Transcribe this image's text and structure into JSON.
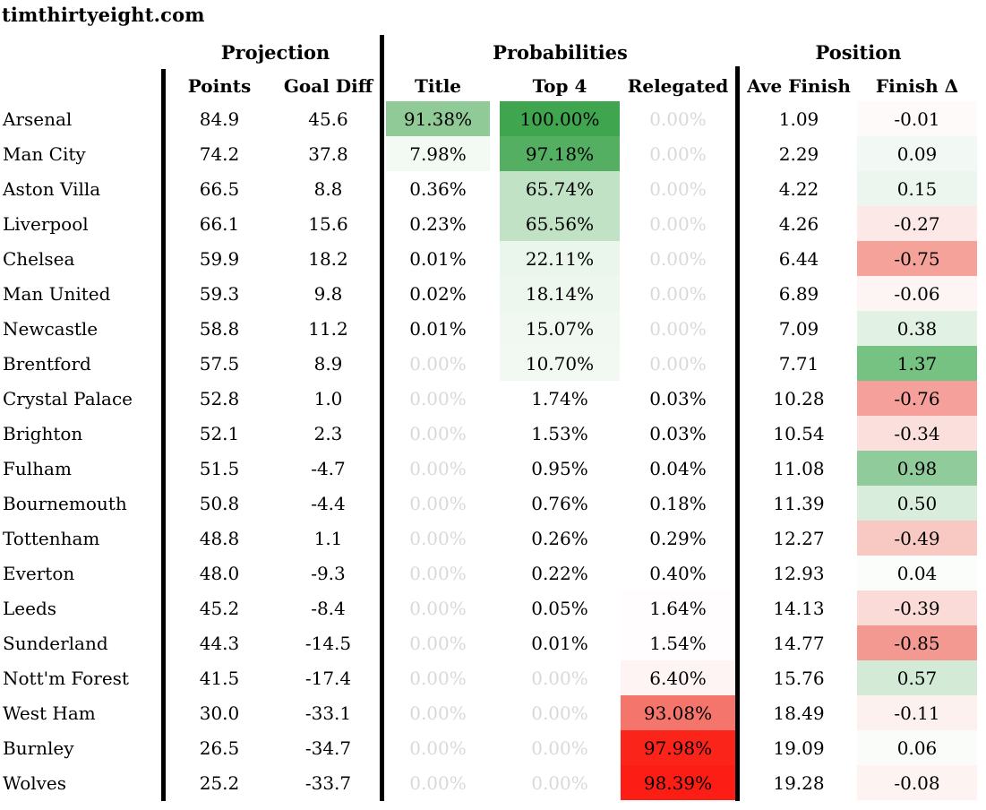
{
  "site_title": "timthirtyeight.com",
  "palette": {
    "green_max": "#3fa54e",
    "red_max": "#fc1e14",
    "zero_value_text": "#d9d9d9",
    "divider_bar": "#000000"
  },
  "chart_data": {
    "type": "table",
    "title": "timthirtyeight.com",
    "column_groups": [
      "Projection",
      "Probabilities",
      "Position"
    ],
    "columns": [
      "Points",
      "Goal Diff",
      "Title",
      "Top 4",
      "Relegated",
      "Ave Finish",
      "Finish Δ"
    ],
    "rows": [
      {
        "team": "Arsenal",
        "points": "84.9",
        "goal_diff": "45.6",
        "title": "91.38%",
        "top4": "100.00%",
        "relegated": "0.00%",
        "ave_finish": "1.09",
        "finish_delta": "-0.01",
        "colors": {
          "title": "#8fca97",
          "top4": "#3fa54e",
          "relegated": "#ffffff",
          "finish_delta": "#fefafa"
        }
      },
      {
        "team": "Man City",
        "points": "74.2",
        "goal_diff": "37.8",
        "title": "7.98%",
        "top4": "97.18%",
        "relegated": "0.00%",
        "ave_finish": "2.29",
        "finish_delta": "0.09",
        "colors": {
          "title": "#f3faf4",
          "top4": "#54af62",
          "relegated": "#ffffff",
          "finish_delta": "#f2f9f4"
        }
      },
      {
        "team": "Aston Villa",
        "points": "66.5",
        "goal_diff": "8.8",
        "title": "0.36%",
        "top4": "65.74%",
        "relegated": "0.00%",
        "ave_finish": "4.22",
        "finish_delta": "0.15",
        "colors": {
          "title": "#ffffff",
          "top4": "#c2e2c6",
          "relegated": "#ffffff",
          "finish_delta": "#ecf6ee"
        }
      },
      {
        "team": "Liverpool",
        "points": "66.1",
        "goal_diff": "15.6",
        "title": "0.23%",
        "top4": "65.56%",
        "relegated": "0.00%",
        "ave_finish": "4.26",
        "finish_delta": "-0.27",
        "colors": {
          "title": "#ffffff",
          "top4": "#c2e2c6",
          "relegated": "#ffffff",
          "finish_delta": "#fce8e6"
        }
      },
      {
        "team": "Chelsea",
        "points": "59.9",
        "goal_diff": "18.2",
        "title": "0.01%",
        "top4": "22.11%",
        "relegated": "0.00%",
        "ave_finish": "6.44",
        "finish_delta": "-0.75",
        "colors": {
          "title": "#ffffff",
          "top4": "#eaf6ec",
          "relegated": "#ffffff",
          "finish_delta": "#f5a29b"
        }
      },
      {
        "team": "Man United",
        "points": "59.3",
        "goal_diff": "9.8",
        "title": "0.02%",
        "top4": "18.14%",
        "relegated": "0.00%",
        "ave_finish": "6.89",
        "finish_delta": "-0.06",
        "colors": {
          "title": "#ffffff",
          "top4": "#edf7ee",
          "relegated": "#ffffff",
          "finish_delta": "#fdf5f4"
        }
      },
      {
        "team": "Newcastle",
        "points": "58.8",
        "goal_diff": "11.2",
        "title": "0.01%",
        "top4": "15.07%",
        "relegated": "0.00%",
        "ave_finish": "7.09",
        "finish_delta": "0.38",
        "colors": {
          "title": "#ffffff",
          "top4": "#f0f8f1",
          "relegated": "#ffffff",
          "finish_delta": "#e1f1e4"
        }
      },
      {
        "team": "Brentford",
        "points": "57.5",
        "goal_diff": "8.9",
        "title": "0.00%",
        "top4": "10.70%",
        "relegated": "0.00%",
        "ave_finish": "7.71",
        "finish_delta": "1.37",
        "colors": {
          "title": "#ffffff",
          "top4": "#f2f9f3",
          "relegated": "#ffffff",
          "finish_delta": "#76c283"
        }
      },
      {
        "team": "Crystal Palace",
        "points": "52.8",
        "goal_diff": "1.0",
        "title": "0.00%",
        "top4": "1.74%",
        "relegated": "0.03%",
        "ave_finish": "10.28",
        "finish_delta": "-0.76",
        "colors": {
          "title": "#ffffff",
          "top4": "#fefffe",
          "relegated": "#ffffff",
          "finish_delta": "#f5a09a"
        }
      },
      {
        "team": "Brighton",
        "points": "52.1",
        "goal_diff": "2.3",
        "title": "0.00%",
        "top4": "1.53%",
        "relegated": "0.03%",
        "ave_finish": "10.54",
        "finish_delta": "-0.34",
        "colors": {
          "title": "#ffffff",
          "top4": "#ffffff",
          "relegated": "#ffffff",
          "finish_delta": "#fbdfdc"
        }
      },
      {
        "team": "Fulham",
        "points": "51.5",
        "goal_diff": "-4.7",
        "title": "0.00%",
        "top4": "0.95%",
        "relegated": "0.04%",
        "ave_finish": "11.08",
        "finish_delta": "0.98",
        "colors": {
          "title": "#ffffff",
          "top4": "#ffffff",
          "relegated": "#ffffff",
          "finish_delta": "#90cb9b"
        }
      },
      {
        "team": "Bournemouth",
        "points": "50.8",
        "goal_diff": "-4.4",
        "title": "0.00%",
        "top4": "0.76%",
        "relegated": "0.18%",
        "ave_finish": "11.39",
        "finish_delta": "0.50",
        "colors": {
          "title": "#ffffff",
          "top4": "#ffffff",
          "relegated": "#ffffff",
          "finish_delta": "#d9eddc"
        }
      },
      {
        "team": "Tottenham",
        "points": "48.8",
        "goal_diff": "1.1",
        "title": "0.00%",
        "top4": "0.26%",
        "relegated": "0.29%",
        "ave_finish": "12.27",
        "finish_delta": "-0.49",
        "colors": {
          "title": "#ffffff",
          "top4": "#ffffff",
          "relegated": "#ffffff",
          "finish_delta": "#f8c8c3"
        }
      },
      {
        "team": "Everton",
        "points": "48.0",
        "goal_diff": "-9.3",
        "title": "0.00%",
        "top4": "0.22%",
        "relegated": "0.40%",
        "ave_finish": "12.93",
        "finish_delta": "0.04",
        "colors": {
          "title": "#ffffff",
          "top4": "#ffffff",
          "relegated": "#ffffff",
          "finish_delta": "#fbfdfb"
        }
      },
      {
        "team": "Leeds",
        "points": "45.2",
        "goal_diff": "-8.4",
        "title": "0.00%",
        "top4": "0.05%",
        "relegated": "1.64%",
        "ave_finish": "14.13",
        "finish_delta": "-0.39",
        "colors": {
          "title": "#ffffff",
          "top4": "#ffffff",
          "relegated": "#fffdfd",
          "finish_delta": "#fadbd7"
        }
      },
      {
        "team": "Sunderland",
        "points": "44.3",
        "goal_diff": "-14.5",
        "title": "0.00%",
        "top4": "0.01%",
        "relegated": "1.54%",
        "ave_finish": "14.77",
        "finish_delta": "-0.85",
        "colors": {
          "title": "#ffffff",
          "top4": "#ffffff",
          "relegated": "#fffdfd",
          "finish_delta": "#f49992"
        }
      },
      {
        "team": "Nott'm Forest",
        "points": "41.5",
        "goal_diff": "-17.4",
        "title": "0.00%",
        "top4": "0.00%",
        "relegated": "6.40%",
        "ave_finish": "15.76",
        "finish_delta": "0.57",
        "colors": {
          "title": "#ffffff",
          "top4": "#ffffff",
          "relegated": "#fdf4f3",
          "finish_delta": "#d3ead7"
        }
      },
      {
        "team": "West Ham",
        "points": "30.0",
        "goal_diff": "-33.1",
        "title": "0.00%",
        "top4": "0.00%",
        "relegated": "93.08%",
        "ave_finish": "18.49",
        "finish_delta": "-0.11",
        "colors": {
          "title": "#ffffff",
          "top4": "#ffffff",
          "relegated": "#f4756c",
          "finish_delta": "#fdf1ef"
        }
      },
      {
        "team": "Burnley",
        "points": "26.5",
        "goal_diff": "-34.7",
        "title": "0.00%",
        "top4": "0.00%",
        "relegated": "97.98%",
        "ave_finish": "19.09",
        "finish_delta": "0.06",
        "colors": {
          "title": "#ffffff",
          "top4": "#ffffff",
          "relegated": "#fb241a",
          "finish_delta": "#fafcfa"
        }
      },
      {
        "team": "Wolves",
        "points": "25.2",
        "goal_diff": "-33.7",
        "title": "0.00%",
        "top4": "0.00%",
        "relegated": "98.39%",
        "ave_finish": "19.28",
        "finish_delta": "-0.08",
        "colors": {
          "title": "#ffffff",
          "top4": "#ffffff",
          "relegated": "#fc1e14",
          "finish_delta": "#fdf3f1"
        }
      }
    ]
  }
}
